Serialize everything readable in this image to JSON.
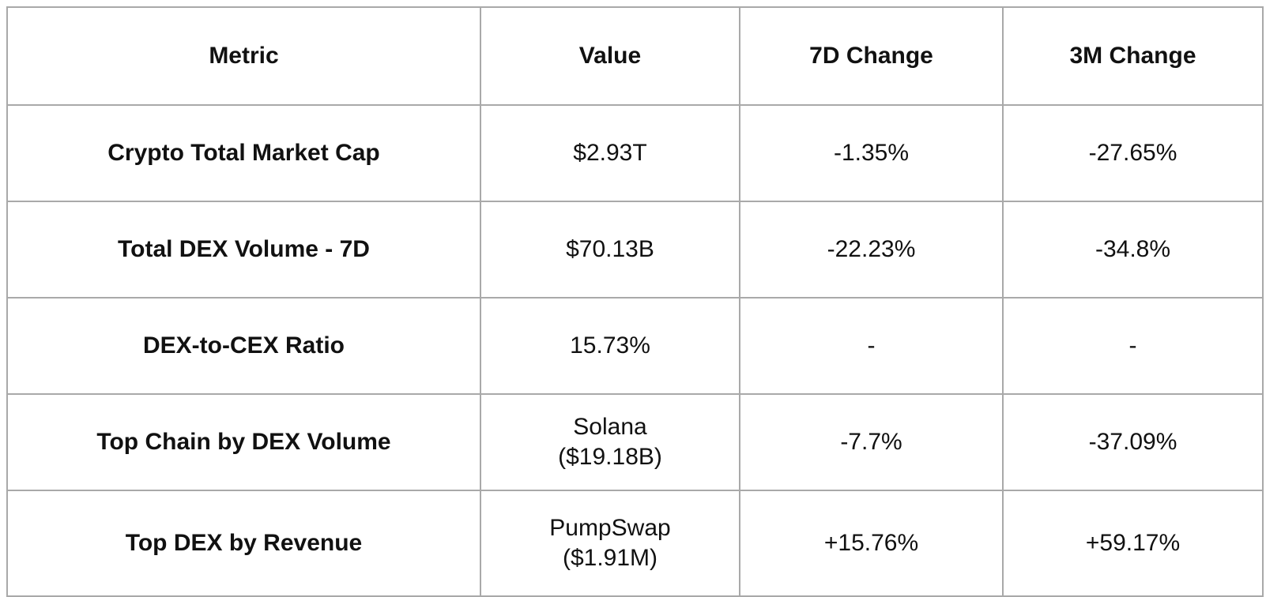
{
  "styles": {
    "border_color": "#a9a9a9",
    "text_color": "#111111",
    "background": "#ffffff"
  },
  "chart_data": {
    "type": "table",
    "columns": [
      "Metric",
      "Value",
      "7D Change",
      "3M Change"
    ],
    "rows": [
      [
        "Crypto Total Market Cap",
        "$2.93T",
        "-1.35%",
        "-27.65%"
      ],
      [
        "Total DEX Volume - 7D",
        "$70.13B",
        "-22.23%",
        "-34.8%"
      ],
      [
        "DEX-to-CEX Ratio",
        "15.73%",
        "-",
        "-"
      ],
      [
        "Top Chain by DEX Volume",
        "Solana\n($19.18B)",
        "-7.7%",
        "-37.09%"
      ],
      [
        "Top DEX by Revenue",
        "PumpSwap\n($1.91M)",
        "+15.76%",
        "+59.17%"
      ]
    ]
  }
}
